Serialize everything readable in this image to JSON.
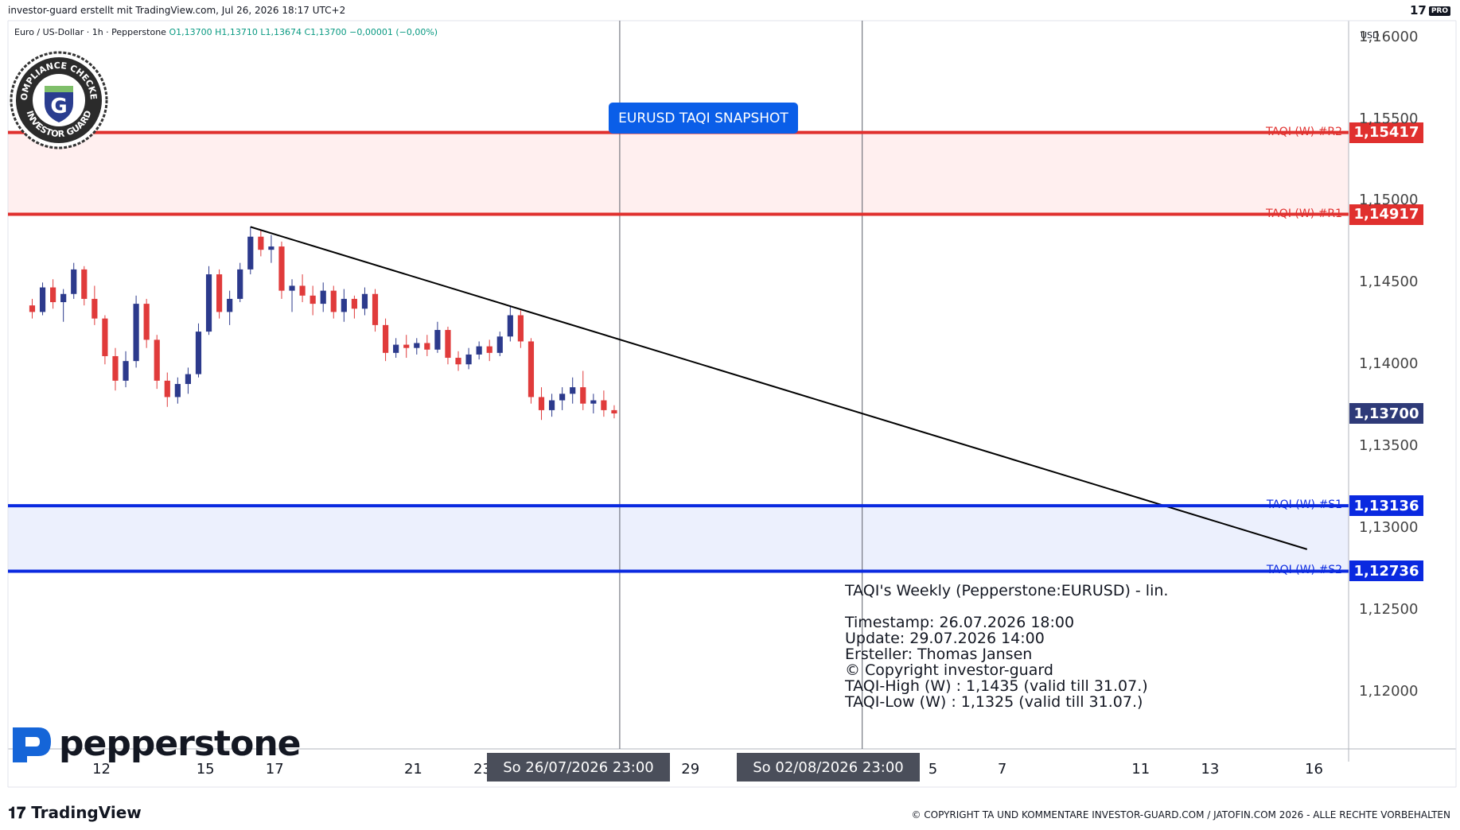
{
  "header": {
    "credit": "investor-guard erstellt mit TradingView.com, Jul 26, 2026 18:17 UTC+2",
    "pro_logo": "17",
    "pro_badge": "PRO"
  },
  "ohlc": {
    "symbol": "Euro / US-Dollar · 1h · Pepperstone",
    "open": "O1,13700",
    "high": "H1,13710",
    "low": "L1,13674",
    "close": "C1,13700",
    "change": "−0,00001 (−0,00%)"
  },
  "currency": "USD",
  "badge": {
    "top_text": "COMPLIANCE CHECKED",
    "bottom_text": "INVESTOR GUARD",
    "letter": "G"
  },
  "snapshot_label": "EURUSD TAQI SNAPSHOT",
  "levels": [
    {
      "label": "TAQI (W) #R2",
      "price": 1.15417,
      "price_text": "1,15417",
      "color": "#e0302e"
    },
    {
      "label": "TAQI (W) #R1",
      "price": 1.14917,
      "price_text": "1,14917",
      "color": "#e0302e"
    },
    {
      "label": "TAQI (W) #S1",
      "price": 1.13136,
      "price_text": "1,13136",
      "color": "#0a29e0"
    },
    {
      "label": "TAQI (W) #S2",
      "price": 1.12736,
      "price_text": "1,12736",
      "color": "#0a29e0"
    }
  ],
  "last_price": {
    "price": 1.137,
    "price_text": "1,13700",
    "color": "#2e3a78"
  },
  "info_box": {
    "title": "TAQI's Weekly (Pepperstone:EURUSD) - lin.",
    "timestamp": "Timestamp: 26.07.2026 18:00",
    "update": "Update: 29.07.2026 14:00",
    "author": "Ersteller: Thomas Jansen",
    "copyright": "© Copyright investor-guard",
    "taqi_high": "TAQI-High (W) : 1,1435 (valid till 31.07.)",
    "taqi_low": "TAQI-Low (W) : 1,1325 (valid till 31.07.)"
  },
  "date_markers": [
    "So 26/07/2026    23:00",
    "So 02/08/2026    23:00"
  ],
  "broker_logo": "pepperstone",
  "footer": {
    "tradingview": "TradingView",
    "copyright": "© COPYRIGHT TA UND KOMMENTARE INVESTOR-GUARD.COM / JATOFIN.COM 2026 - ALLE RECHTE VORBEHALTEN"
  },
  "chart_data": {
    "type": "candlestick",
    "title": "Euro / US-Dollar · 1h · Pepperstone",
    "y_ticks": [
      "1,16000",
      "1,15500",
      "1,15000",
      "1,14500",
      "1,14000",
      "1,13500",
      "1,13000",
      "1,12500",
      "1,12000"
    ],
    "y_tick_values": [
      1.16,
      1.155,
      1.15,
      1.145,
      1.14,
      1.135,
      1.13,
      1.125,
      1.12
    ],
    "ylim": [
      1.1165,
      1.161
    ],
    "x_ticks": [
      "12",
      "15",
      "17",
      "21",
      "23",
      "29",
      "5",
      "7",
      "11",
      "13",
      "16"
    ],
    "x_tick_days": [
      12,
      15,
      17,
      21,
      23,
      29,
      36,
      38,
      42,
      44,
      47
    ],
    "xlim_days": [
      9.3,
      48
    ],
    "date_marker_days": [
      26.96,
      33.96
    ],
    "trendline": {
      "start": {
        "day": 16.3,
        "price": 1.1484
      },
      "end": {
        "day": 46.8,
        "price": 1.1287
      }
    },
    "series": [
      {
        "values": [
          [
            10.0,
            1.1436,
            1.144,
            1.1428,
            1.1432
          ],
          [
            10.3,
            1.1432,
            1.145,
            1.143,
            1.1447
          ],
          [
            10.6,
            1.1447,
            1.1452,
            1.1434,
            1.1438
          ],
          [
            10.9,
            1.1438,
            1.1446,
            1.1426,
            1.1443
          ],
          [
            11.2,
            1.1443,
            1.1462,
            1.144,
            1.1458
          ],
          [
            11.5,
            1.1458,
            1.146,
            1.1436,
            1.144
          ],
          [
            11.8,
            1.144,
            1.1448,
            1.1424,
            1.1428
          ],
          [
            12.1,
            1.1428,
            1.143,
            1.14,
            1.1405
          ],
          [
            12.4,
            1.1405,
            1.141,
            1.1384,
            1.139
          ],
          [
            12.7,
            1.139,
            1.1408,
            1.1386,
            1.1402
          ],
          [
            13.0,
            1.1402,
            1.1442,
            1.1398,
            1.1437
          ],
          [
            13.3,
            1.1437,
            1.144,
            1.141,
            1.1415
          ],
          [
            13.6,
            1.1415,
            1.1418,
            1.1385,
            1.139
          ],
          [
            13.9,
            1.139,
            1.1395,
            1.1374,
            1.138
          ],
          [
            14.2,
            1.138,
            1.1392,
            1.1376,
            1.1388
          ],
          [
            14.5,
            1.1388,
            1.1398,
            1.1382,
            1.1394
          ],
          [
            14.8,
            1.1394,
            1.1425,
            1.1392,
            1.142
          ],
          [
            15.1,
            1.142,
            1.146,
            1.1418,
            1.1455
          ],
          [
            15.4,
            1.1455,
            1.1458,
            1.1428,
            1.1432
          ],
          [
            15.7,
            1.1432,
            1.1445,
            1.1424,
            1.144
          ],
          [
            16.0,
            1.144,
            1.1462,
            1.1438,
            1.1458
          ],
          [
            16.3,
            1.1458,
            1.1484,
            1.1455,
            1.1478
          ],
          [
            16.6,
            1.1478,
            1.1482,
            1.1466,
            1.147
          ],
          [
            16.9,
            1.147,
            1.1479,
            1.1462,
            1.1472
          ],
          [
            17.2,
            1.1472,
            1.1475,
            1.144,
            1.1445
          ],
          [
            17.5,
            1.1445,
            1.1452,
            1.1432,
            1.1448
          ],
          [
            17.8,
            1.1448,
            1.1455,
            1.1438,
            1.1442
          ],
          [
            18.1,
            1.1442,
            1.1448,
            1.143,
            1.1437
          ],
          [
            18.4,
            1.1437,
            1.145,
            1.1432,
            1.1445
          ],
          [
            18.7,
            1.1445,
            1.1448,
            1.1428,
            1.1432
          ],
          [
            19.0,
            1.1432,
            1.1446,
            1.1426,
            1.144
          ],
          [
            19.3,
            1.144,
            1.1442,
            1.1428,
            1.1434
          ],
          [
            19.6,
            1.1434,
            1.1447,
            1.143,
            1.1443
          ],
          [
            19.9,
            1.1443,
            1.1446,
            1.142,
            1.1424
          ],
          [
            20.2,
            1.1424,
            1.1428,
            1.1402,
            1.1407
          ],
          [
            20.5,
            1.1407,
            1.1416,
            1.1404,
            1.1412
          ],
          [
            20.8,
            1.1412,
            1.1418,
            1.1404,
            1.141
          ],
          [
            21.1,
            1.141,
            1.1416,
            1.1406,
            1.1413
          ],
          [
            21.4,
            1.1413,
            1.1418,
            1.1405,
            1.1409
          ],
          [
            21.7,
            1.1409,
            1.1426,
            1.1407,
            1.1421
          ],
          [
            22.0,
            1.1421,
            1.1423,
            1.14,
            1.1404
          ],
          [
            22.3,
            1.1404,
            1.1408,
            1.1396,
            1.14
          ],
          [
            22.6,
            1.14,
            1.141,
            1.1397,
            1.1406
          ],
          [
            22.9,
            1.1406,
            1.1414,
            1.1403,
            1.1411
          ],
          [
            23.2,
            1.1411,
            1.1415,
            1.1402,
            1.1407
          ],
          [
            23.5,
            1.1407,
            1.142,
            1.1405,
            1.1417
          ],
          [
            23.8,
            1.1417,
            1.1436,
            1.1414,
            1.143
          ],
          [
            24.1,
            1.143,
            1.1433,
            1.141,
            1.1414
          ],
          [
            24.4,
            1.1414,
            1.1416,
            1.1376,
            1.138
          ],
          [
            24.7,
            1.138,
            1.1386,
            1.1366,
            1.1372
          ],
          [
            25.0,
            1.1372,
            1.1382,
            1.1368,
            1.1378
          ],
          [
            25.3,
            1.1378,
            1.1386,
            1.1372,
            1.1382
          ],
          [
            25.6,
            1.1382,
            1.1392,
            1.1376,
            1.1386
          ],
          [
            25.9,
            1.1386,
            1.1396,
            1.1372,
            1.1376
          ],
          [
            26.2,
            1.1376,
            1.1382,
            1.137,
            1.1378
          ],
          [
            26.5,
            1.1378,
            1.1384,
            1.1368,
            1.1372
          ],
          [
            26.8,
            1.1372,
            1.1375,
            1.1367,
            1.137
          ]
        ]
      }
    ]
  }
}
